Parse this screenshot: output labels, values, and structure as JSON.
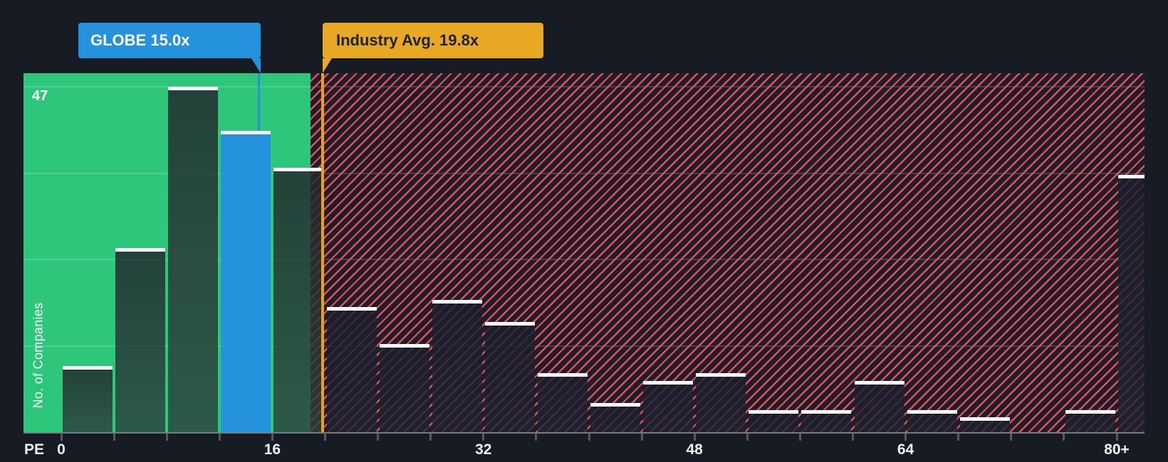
{
  "page": {
    "background": "#161b24"
  },
  "callouts": {
    "company": {
      "label": "GLOBE 15.0x",
      "color": "#2592dd"
    },
    "industry": {
      "label": "Industry Avg. 19.8x",
      "color": "#e9a726"
    }
  },
  "axes": {
    "y_label": "No. of Companies",
    "y_max_label": "47",
    "x_label": "PE",
    "x_tick_labels": [
      "0",
      "16",
      "32",
      "48",
      "64",
      "80+"
    ]
  },
  "chart_data": {
    "type": "bar",
    "xlabel": "PE",
    "ylabel": "No. of Companies",
    "bin_size_pe": 4,
    "categories": [
      "0-4",
      "4-8",
      "8-12",
      "12-16",
      "16-20",
      "20-24",
      "24-28",
      "28-32",
      "32-36",
      "36-40",
      "40-44",
      "44-48",
      "48-52",
      "52-56",
      "56-60",
      "60-64",
      "64-68",
      "68-72",
      "72-76",
      "76-80",
      "80+"
    ],
    "values": [
      9,
      25,
      47,
      41,
      36,
      17,
      12,
      18,
      15,
      8,
      4,
      7,
      8,
      3,
      3,
      7,
      3,
      2,
      0,
      3,
      35
    ],
    "ylim": [
      0,
      47
    ],
    "gridline_values": [
      11.75,
      23.5,
      35.25,
      47
    ],
    "x_tick_pe": [
      0,
      16,
      32,
      48,
      64,
      80
    ],
    "x_tick_labels": [
      "0",
      "16",
      "32",
      "48",
      "64",
      "80+"
    ],
    "highlight_bar": {
      "category": "12-16",
      "label": "GLOBE 15.0x",
      "pe": 15.0,
      "color": "#2592dd"
    },
    "industry_avg": {
      "label": "Industry Avg. 19.8x",
      "pe": 19.8,
      "line_color": "#e7a11c"
    },
    "zones": {
      "below_average_color": "#2dc67b",
      "below_average_end_pe": 18.9,
      "above_average_bg": "#1a1f29",
      "above_average_stripe_color": "#ee4a59"
    },
    "legend": "off",
    "grid": "on"
  }
}
